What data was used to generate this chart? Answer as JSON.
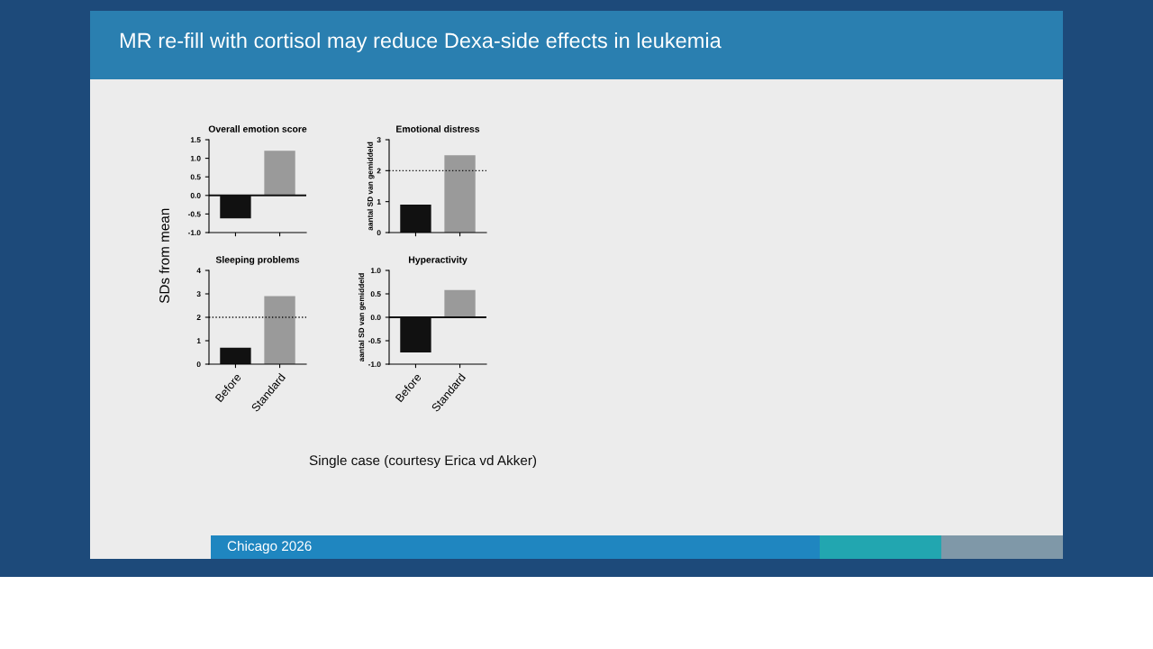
{
  "chart_data": [
    {
      "type": "bar",
      "title": "Overall emotion score",
      "ylabel": "SDs from mean",
      "categories": [
        null,
        null
      ],
      "ref_lines": [
        {
          "axis": "y",
          "value": 0,
          "line_style": "solid",
          "color": "#111111"
        }
      ],
      "values": [
        -0.62,
        1.2
      ],
      "colors": [
        "#111111",
        "#9a9a9a"
      ],
      "ylim": [
        -1.0,
        1.5
      ],
      "yticks": [
        {
          "value": -1.0,
          "label": "-1.0"
        },
        {
          "value": -0.5,
          "label": "-0.5"
        },
        {
          "value": 0.0,
          "label": "0.0"
        },
        {
          "value": 0.5,
          "label": "0.5"
        },
        {
          "value": 1.0,
          "label": "1.0"
        },
        {
          "value": 1.5,
          "label": "1.5"
        }
      ],
      "tick_labels": "y",
      "grid": false,
      "legend": false,
      "annotations": [
        "MR re-fill with cortisol may reduce Dexa-side effects in leukemia",
        "Single case (courtesy Erica vd Akker)",
        "Chicago 2026"
      ]
    },
    {
      "type": "bar",
      "title": "Emotional distress",
      "ylabel": "aantal SD van gemiddeld",
      "categories": [
        null,
        null
      ],
      "values": [
        0.9,
        2.5
      ],
      "colors": [
        "#111111",
        "#9a9a9a"
      ],
      "ylim": [
        0,
        3
      ],
      "yticks": [
        0,
        1,
        2,
        3
      ],
      "tick_labels": "y",
      "grid": false,
      "legend": false,
      "ref_lines": [
        {
          "axis": "y",
          "value": 2,
          "line_style": "dotted",
          "color": "#111111"
        }
      ]
    },
    {
      "type": "bar",
      "title": "Sleeping problems",
      "categories": [
        "Before",
        "Standard"
      ],
      "values": [
        0.7,
        2.9
      ],
      "colors": [
        "#111111",
        "#9a9a9a"
      ],
      "ylim": [
        0,
        4
      ],
      "yticks": [
        0,
        1,
        2,
        3,
        4
      ],
      "grid": false,
      "legend": false,
      "ref_lines": [
        {
          "axis": "y",
          "value": 2,
          "line_style": "dotted",
          "color": "#111111"
        }
      ]
    },
    {
      "type": "bar",
      "title": "Hyperactivity",
      "ylabel": "aantal SD van gemiddeld",
      "categories": [
        "Before",
        "Standard"
      ],
      "values": [
        -0.75,
        0.58
      ],
      "colors": [
        "#111111",
        "#9a9a9a"
      ],
      "ylim": [
        -1.0,
        1.0
      ],
      "yticks": [
        {
          "value": -1.0,
          "label": "-1.0"
        },
        {
          "value": -0.5,
          "label": "-0.5"
        },
        {
          "value": 0.0,
          "label": "0.0"
        },
        {
          "value": 0.5,
          "label": "0.5"
        },
        {
          "value": 1.0,
          "label": "1.0"
        }
      ],
      "grid": false,
      "legend": false,
      "ref_lines": [
        {
          "axis": "y",
          "value": 0,
          "line_style": "solid",
          "color": "#111111"
        }
      ]
    }
  ]
}
